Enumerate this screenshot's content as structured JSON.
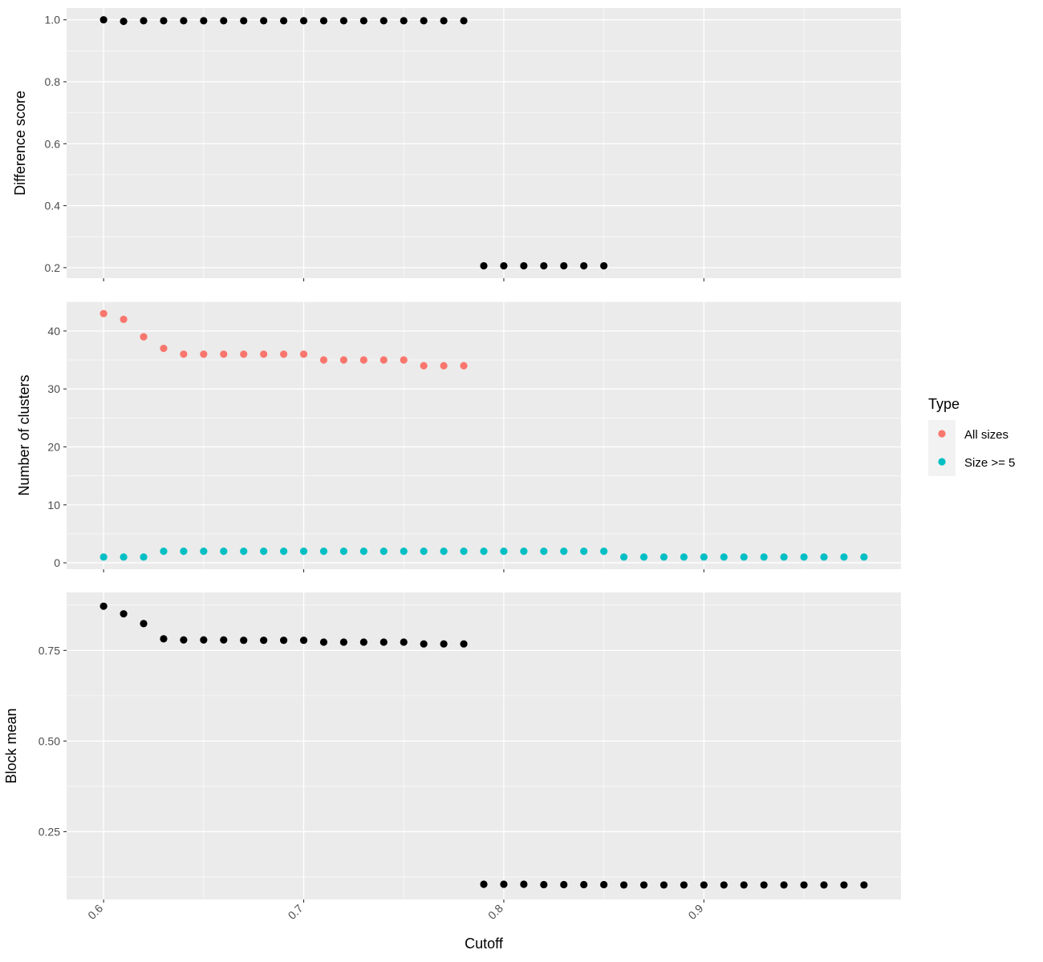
{
  "chart_data": {
    "type": "scatter",
    "layout": "faceted-vertical",
    "xlabel": "Cutoff",
    "x_ticks": [
      "0.6",
      "0.7",
      "0.8",
      "0.9"
    ],
    "xlim": [
      0.5815,
      0.9985
    ],
    "point_color": "#000000",
    "panel_background": "#ebebeb",
    "grid_color": "#ffffff",
    "grid": true,
    "legend": {
      "title": "Type",
      "placement": "right",
      "entries": [
        {
          "label": "All sizes",
          "color": "#F8766D"
        },
        {
          "label": "Size >= 5",
          "color": "#00BFC4"
        }
      ]
    },
    "panels": [
      {
        "ylabel": "Difference score",
        "ylim": [
          0.166,
          1.038
        ],
        "y_ticks": [
          "0.2",
          "0.4",
          "0.6",
          "0.8",
          "1.0"
        ],
        "series": [
          {
            "color": "#000000",
            "x": [
              0.6,
              0.61,
              0.62,
              0.63,
              0.64,
              0.65,
              0.66,
              0.67,
              0.68,
              0.69,
              0.7,
              0.71,
              0.72,
              0.73,
              0.74,
              0.75,
              0.76,
              0.77,
              0.78,
              0.79,
              0.8,
              0.81,
              0.82,
              0.83,
              0.84,
              0.85
            ],
            "y": [
              1.0,
              0.995,
              0.997,
              0.997,
              0.997,
              0.997,
              0.997,
              0.997,
              0.997,
              0.997,
              0.997,
              0.997,
              0.997,
              0.997,
              0.997,
              0.997,
              0.997,
              0.997,
              0.997,
              0.206,
              0.206,
              0.206,
              0.206,
              0.206,
              0.206,
              0.206
            ]
          }
        ]
      },
      {
        "ylabel": "Number of clusters",
        "ylim": [
          -1.1,
          45.1
        ],
        "y_ticks": [
          "0",
          "10",
          "20",
          "30",
          "40"
        ],
        "series": [
          {
            "name": "All sizes",
            "color": "#F8766D",
            "x": [
              0.6,
              0.61,
              0.62,
              0.63,
              0.64,
              0.65,
              0.66,
              0.67,
              0.68,
              0.69,
              0.7,
              0.71,
              0.72,
              0.73,
              0.74,
              0.75,
              0.76,
              0.77,
              0.78
            ],
            "y": [
              43,
              42,
              39,
              37,
              36,
              36,
              36,
              36,
              36,
              36,
              36,
              35,
              35,
              35,
              35,
              35,
              34,
              34,
              34
            ]
          },
          {
            "name": "Size >= 5",
            "color": "#00BFC4",
            "x": [
              0.6,
              0.61,
              0.62,
              0.63,
              0.64,
              0.65,
              0.66,
              0.67,
              0.68,
              0.69,
              0.7,
              0.71,
              0.72,
              0.73,
              0.74,
              0.75,
              0.76,
              0.77,
              0.78,
              0.79,
              0.8,
              0.81,
              0.82,
              0.83,
              0.84,
              0.85,
              0.86,
              0.87,
              0.88,
              0.89,
              0.9,
              0.91,
              0.92,
              0.93,
              0.94,
              0.95,
              0.96,
              0.97,
              0.98
            ],
            "y": [
              1,
              1,
              1,
              2,
              2,
              2,
              2,
              2,
              2,
              2,
              2,
              2,
              2,
              2,
              2,
              2,
              2,
              2,
              2,
              2,
              2,
              2,
              2,
              2,
              2,
              2,
              1,
              1,
              1,
              1,
              1,
              1,
              1,
              1,
              1,
              1,
              1,
              1,
              1
            ]
          }
        ]
      },
      {
        "ylabel": "Block mean",
        "ylim": [
          0.063,
          0.91
        ],
        "y_ticks": [
          "0.25",
          "0.50",
          "0.75"
        ],
        "series": [
          {
            "color": "#000000",
            "x": [
              0.6,
              0.61,
              0.62,
              0.63,
              0.64,
              0.65,
              0.66,
              0.67,
              0.68,
              0.69,
              0.7,
              0.71,
              0.72,
              0.73,
              0.74,
              0.75,
              0.76,
              0.77,
              0.78,
              0.79,
              0.8,
              0.81,
              0.82,
              0.83,
              0.84,
              0.85,
              0.86,
              0.87,
              0.88,
              0.89,
              0.9,
              0.91,
              0.92,
              0.93,
              0.94,
              0.95,
              0.96,
              0.97,
              0.98
            ],
            "y": [
              0.872,
              0.851,
              0.824,
              0.782,
              0.779,
              0.779,
              0.779,
              0.778,
              0.778,
              0.778,
              0.778,
              0.773,
              0.773,
              0.773,
              0.773,
              0.773,
              0.768,
              0.768,
              0.768,
              0.105,
              0.105,
              0.105,
              0.104,
              0.104,
              0.104,
              0.104,
              0.103,
              0.103,
              0.103,
              0.103,
              0.103,
              0.103,
              0.103,
              0.103,
              0.103,
              0.103,
              0.103,
              0.103,
              0.103
            ]
          }
        ]
      }
    ]
  }
}
